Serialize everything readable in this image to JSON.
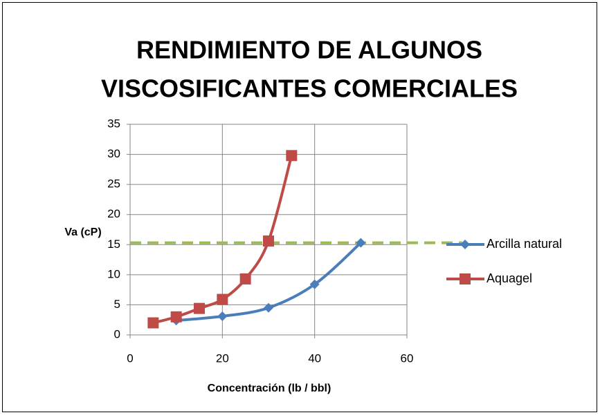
{
  "chart_data": {
    "type": "line",
    "title": [
      "RENDIMIENTO DE ALGUNOS",
      "VISCOSIFICANTES COMERCIALES"
    ],
    "x_label": "Concentración (lb / bbl)",
    "y_label": "Va (cP)",
    "xlim": [
      0,
      60
    ],
    "xticks": [
      0,
      20,
      40,
      60
    ],
    "ylim": [
      0,
      35
    ],
    "yticks": [
      0,
      5,
      10,
      15,
      20,
      25,
      30,
      35
    ],
    "grid": true,
    "legend": "right",
    "series": [
      {
        "name": "Arcilla natural",
        "color": "#4a7ebb",
        "marker": "diamond",
        "x": [
          10,
          20,
          30,
          40,
          50
        ],
        "values": [
          2.4,
          3.1,
          4.5,
          8.4,
          15.3
        ]
      },
      {
        "name": "Aquagel",
        "color": "#be4b48",
        "marker": "square",
        "x": [
          5,
          10,
          15,
          20,
          25,
          30,
          35
        ],
        "values": [
          2.0,
          3.0,
          4.4,
          5.9,
          9.3,
          15.6,
          29.8
        ]
      }
    ],
    "reference_line": {
      "y": 15.3,
      "color": "#9bbb59"
    }
  }
}
